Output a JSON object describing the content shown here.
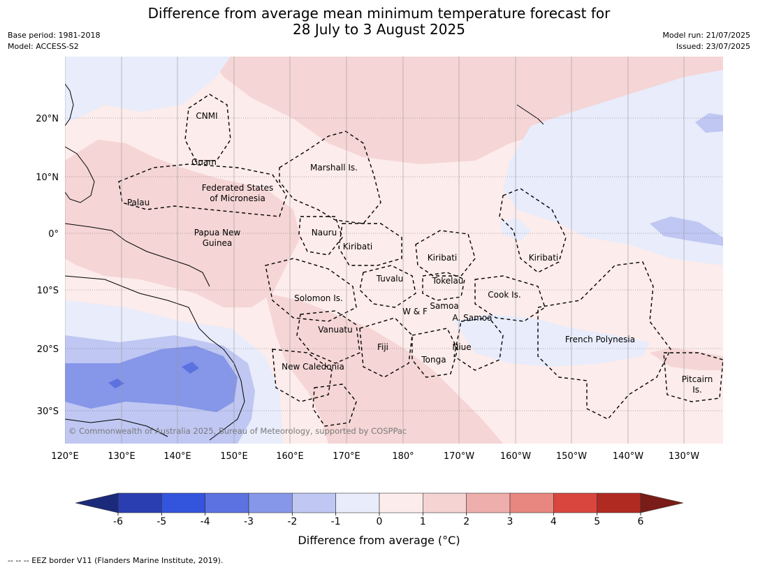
{
  "title_line1": "Difference from average mean minimum temperature forecast for",
  "title_line2": "28 July to 3 August 2025",
  "base_period": "Base period: 1981-2018",
  "model": "Model: ACCESS-S2",
  "model_run": "Model run: 21/07/2025",
  "issued": "Issued: 23/07/2025",
  "copyright": "© Commonwealth of Australia 2025, Bureau of Meteorology, supported by COSPPac",
  "lon_labels": [
    "120°E",
    "130°E",
    "140°E",
    "150°E",
    "160°E",
    "170°E",
    "180°",
    "170°W",
    "160°W",
    "150°W",
    "140°W",
    "130°W"
  ],
  "lat_labels": [
    "20°N",
    "10°N",
    "0°",
    "10°S",
    "20°S",
    "30°S"
  ],
  "places": [
    {
      "text": "CNMI"
    },
    {
      "text": "Guam"
    },
    {
      "text": "Marshall Is."
    },
    {
      "text": "Federated States"
    },
    {
      "text": "of Micronesia"
    },
    {
      "text": "Palau"
    },
    {
      "text": "Papua New"
    },
    {
      "text": "Guinea"
    },
    {
      "text": "Nauru"
    },
    {
      "text": "Kiribati"
    },
    {
      "text": "Kiribati"
    },
    {
      "text": "Kiribati"
    },
    {
      "text": "Tuvalu"
    },
    {
      "text": "Tokelau"
    },
    {
      "text": "Solomon Is."
    },
    {
      "text": "Samoa"
    },
    {
      "text": "W & F"
    },
    {
      "text": "A. Samoa"
    },
    {
      "text": "Cook Is."
    },
    {
      "text": "Vanuatu"
    },
    {
      "text": "Fiji"
    },
    {
      "text": "Niue"
    },
    {
      "text": "Tonga"
    },
    {
      "text": "French Polynesia"
    },
    {
      "text": "New Caledonia"
    },
    {
      "text": "Pitcairn"
    },
    {
      "text": "Is."
    }
  ],
  "colorbar": {
    "ticks": [
      "-6",
      "-5",
      "-4",
      "-3",
      "-2",
      "-1",
      "0",
      "1",
      "2",
      "3",
      "4",
      "5",
      "6"
    ],
    "colors": [
      "#2a3eb1",
      "#3355dd",
      "#5c72e0",
      "#8696e8",
      "#bfc7f2",
      "#e8ecfb",
      "#fceceb",
      "#f5d3d3",
      "#eeaeab",
      "#e88680",
      "#d9463e",
      "#b12a22"
    ],
    "low_extend": "#1b2a7a",
    "high_extend": "#7a1c17",
    "label": "Difference from average (°C)"
  },
  "map_colors": {
    "sea_base": "#fceceb",
    "warm1": "#f5d5d5",
    "cool1": "#e8ecfb",
    "cool2": "#bfc7f2",
    "cool3": "#8696e8",
    "cool4": "#5c72e0"
  },
  "footer": "--  --  -- EEZ border V11 (Flanders Marine Institute, 2019)."
}
